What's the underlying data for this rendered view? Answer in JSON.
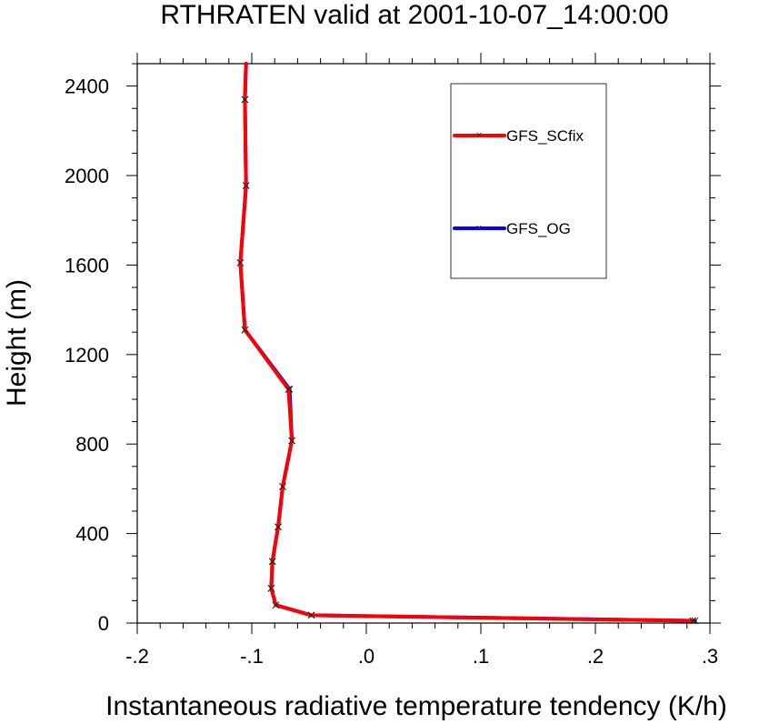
{
  "chart_data": {
    "type": "line",
    "title": "RTHRATEN valid at 2001-10-07_14:00:00",
    "xlabel": "Instantaneous radiative temperature tendency (K/h)",
    "ylabel": "Height (m)",
    "xlim": [
      -0.2,
      0.3
    ],
    "ylim": [
      0,
      2500
    ],
    "xticks": [
      -0.2,
      -0.1,
      0.0,
      0.1,
      0.2,
      0.3
    ],
    "xtick_labels": [
      "-.2",
      "-.1",
      ".0",
      ".1",
      ".2",
      ".3"
    ],
    "yticks": [
      0,
      400,
      800,
      1200,
      1600,
      2000,
      2400
    ],
    "ytick_labels": [
      "0",
      "400",
      "800",
      "1200",
      "1600",
      "2000",
      "2400"
    ],
    "grid": false,
    "legend_position": "top-right",
    "series": [
      {
        "name": "GFS_OG",
        "color": "#0000ff",
        "marker": "x",
        "x": [
          0.287,
          -0.048,
          -0.079,
          -0.083,
          -0.082,
          -0.077,
          -0.073,
          -0.065,
          -0.067,
          -0.106,
          -0.11,
          -0.105,
          -0.106,
          -0.105
        ],
        "y": [
          10,
          35,
          80,
          155,
          275,
          430,
          610,
          815,
          1045,
          1310,
          1610,
          1955,
          2340,
          2500
        ]
      },
      {
        "name": "GFS_SCfix",
        "color": "#ff0000",
        "marker": "x",
        "x": [
          0.285,
          -0.048,
          -0.079,
          -0.083,
          -0.082,
          -0.077,
          -0.073,
          -0.065,
          -0.068,
          -0.106,
          -0.11,
          -0.105,
          -0.106,
          -0.105
        ],
        "y": [
          10,
          35,
          80,
          155,
          275,
          430,
          610,
          815,
          1045,
          1310,
          1610,
          1955,
          2340,
          2500
        ]
      }
    ],
    "legend_order": [
      "GFS_SCfix",
      "GFS_OG"
    ]
  }
}
